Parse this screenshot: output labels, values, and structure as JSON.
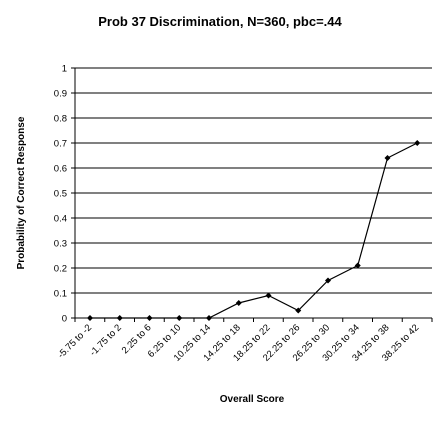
{
  "chart_data": {
    "type": "line",
    "title": "Prob 37 Discrimination, N=360, pbc=.44",
    "xlabel": "Overall Score",
    "ylabel": "Probability of Correct Response",
    "categories": [
      "-5.75 to -2",
      "-1.75 to 2",
      "2.25 to 6",
      "6.25 to 10",
      "10.25 to 14",
      "14.25 to 18",
      "18.25 to 22",
      "22.25 to 26",
      "26.25 to 30",
      "30.25 to 34",
      "34.25 to 38",
      "38.25 to 42"
    ],
    "series": [
      {
        "values": [
          0,
          0,
          0,
          0,
          0,
          0.06,
          0.09,
          0.03,
          0.15,
          0.21,
          0.64,
          0.7
        ]
      }
    ],
    "ylim": [
      0,
      1
    ],
    "yticks": [
      "0",
      "0.1",
      "0.2",
      "0.3",
      "0.4",
      "0.5",
      "0.6",
      "0.7",
      "0.8",
      "0.9",
      "1"
    ],
    "grid": true,
    "colors": {
      "line": "#000000",
      "grid": "#000000",
      "background": "#ffffff"
    }
  }
}
